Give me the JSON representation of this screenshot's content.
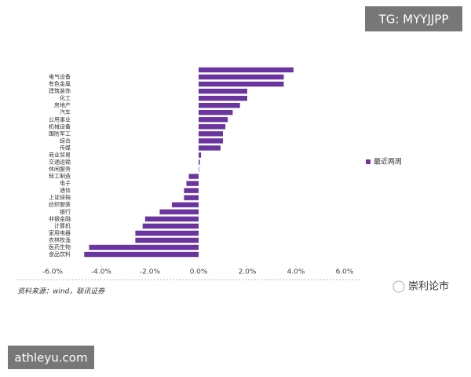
{
  "chart_data": {
    "type": "bar",
    "orientation": "horizontal",
    "categories": [
      null,
      "电气设备",
      "有色金属",
      "建筑装饰",
      "化工",
      "房地产",
      "汽车",
      "公用事业",
      "机械设备",
      "国防军工",
      "综合",
      "传媒",
      "商业贸易",
      "交通运输",
      "休闲服务",
      "轻工制造",
      "电子",
      "通信",
      "上证综指",
      "纺织服装",
      "银行",
      "非银金融",
      "计算机",
      "家用电器",
      "农林牧渔",
      "医药生物",
      "食品饮料"
    ],
    "series": [
      {
        "name": "最近两周",
        "color": "#6b35a0",
        "values": [
          3.9,
          3.5,
          3.5,
          2.0,
          2.0,
          1.7,
          1.4,
          1.2,
          1.1,
          1.0,
          1.0,
          0.9,
          0.1,
          0.05,
          0.02,
          -0.4,
          -0.5,
          -0.6,
          -0.6,
          -1.1,
          -1.6,
          -2.2,
          -2.3,
          -2.6,
          -2.6,
          -4.5,
          -4.7
        ]
      }
    ],
    "xlim": [
      -6,
      6
    ],
    "xticks": [
      {
        "value": -6,
        "label": "-6.0%"
      },
      {
        "value": -4,
        "label": "-4.0%"
      },
      {
        "value": -2,
        "label": "-2.0%"
      },
      {
        "value": 0,
        "label": "0.0%"
      },
      {
        "value": 2,
        "label": "2.0%"
      },
      {
        "value": 4,
        "label": "4.0%"
      },
      {
        "value": 6,
        "label": "6.0%"
      }
    ],
    "legend_position": "right",
    "source": "资料来源：wind，联讯证券",
    "watermark": "崇利论市"
  },
  "overlay": {
    "top_right": "TG: MYYJJPP",
    "bottom_left": "athleyu.com"
  }
}
